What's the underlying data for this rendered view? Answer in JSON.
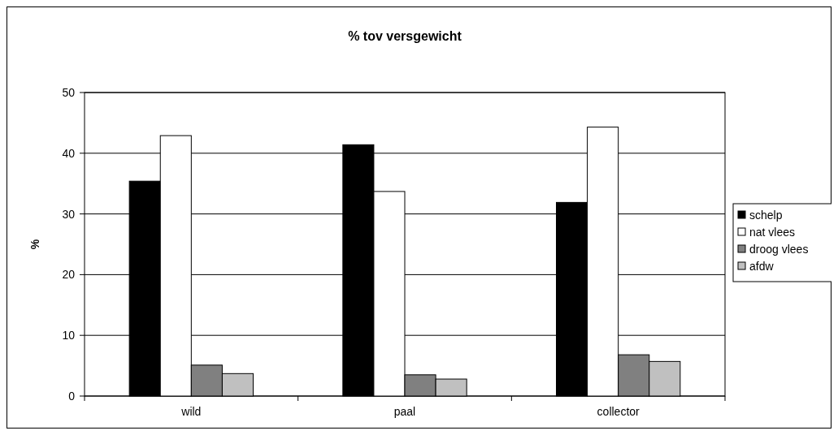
{
  "chart_data": {
    "type": "bar",
    "title": "% tov versgewicht",
    "ylabel": "%",
    "categories": [
      "wild",
      "paal",
      "collector"
    ],
    "series": [
      {
        "name": "schelp",
        "color": "#000000",
        "values": [
          35.4,
          41.4,
          31.9
        ]
      },
      {
        "name": "nat vlees",
        "color": "#ffffff",
        "values": [
          42.9,
          33.7,
          44.3
        ]
      },
      {
        "name": "droog vlees",
        "color": "#808080",
        "values": [
          5.1,
          3.5,
          6.8
        ]
      },
      {
        "name": "afdw",
        "color": "#c0c0c0",
        "values": [
          3.7,
          2.8,
          5.7
        ]
      }
    ],
    "ylim": [
      0,
      50
    ],
    "yticks": [
      0,
      10,
      20,
      30,
      40,
      50
    ],
    "grid": "y",
    "legend": "right"
  }
}
